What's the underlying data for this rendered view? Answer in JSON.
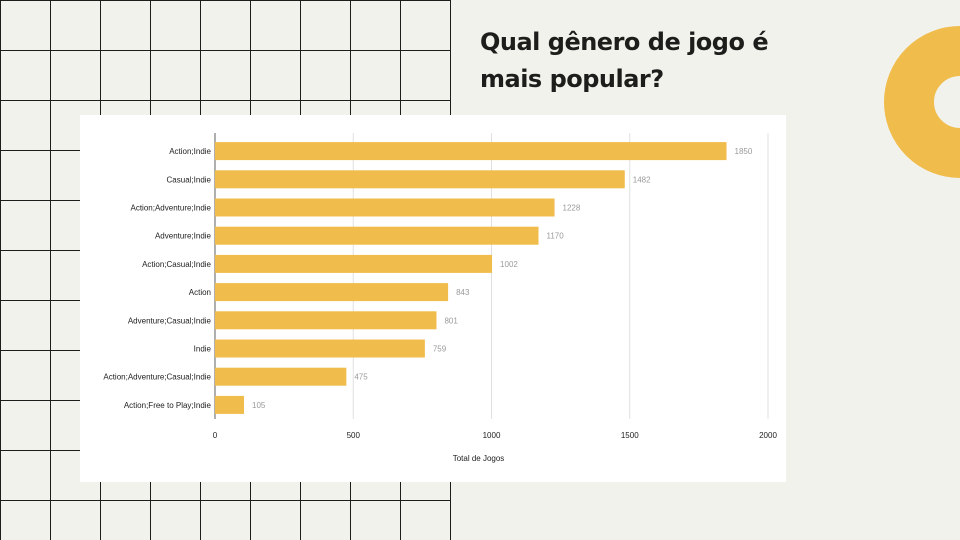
{
  "slide": {
    "title": "Qual gênero de jogo é\nmais popular?",
    "colors": {
      "background": "#f2f2ed",
      "accent": "#f0bc4b",
      "grid_line": "#1d1d1b"
    }
  },
  "chart_data": {
    "type": "bar",
    "orientation": "horizontal",
    "categories": [
      "Action;Indie",
      "Casual;Indie",
      "Action;Adventure;Indie",
      "Adventure;Indie",
      "Action;Casual;Indie",
      "Action",
      "Adventure;Casual;Indie",
      "Indie",
      "Action;Adventure;Casual;Indie",
      "Action;Free to Play;Indie"
    ],
    "values": [
      1850,
      1482,
      1228,
      1170,
      1002,
      843,
      801,
      759,
      475,
      105
    ],
    "xlabel": "Total de Jogos",
    "ylabel": "",
    "xlim": [
      0,
      2000
    ],
    "xticks": [
      0,
      500,
      1000,
      1500,
      2000
    ],
    "grid": true,
    "data_labels": true,
    "bar_color": "#f0bc4b"
  }
}
